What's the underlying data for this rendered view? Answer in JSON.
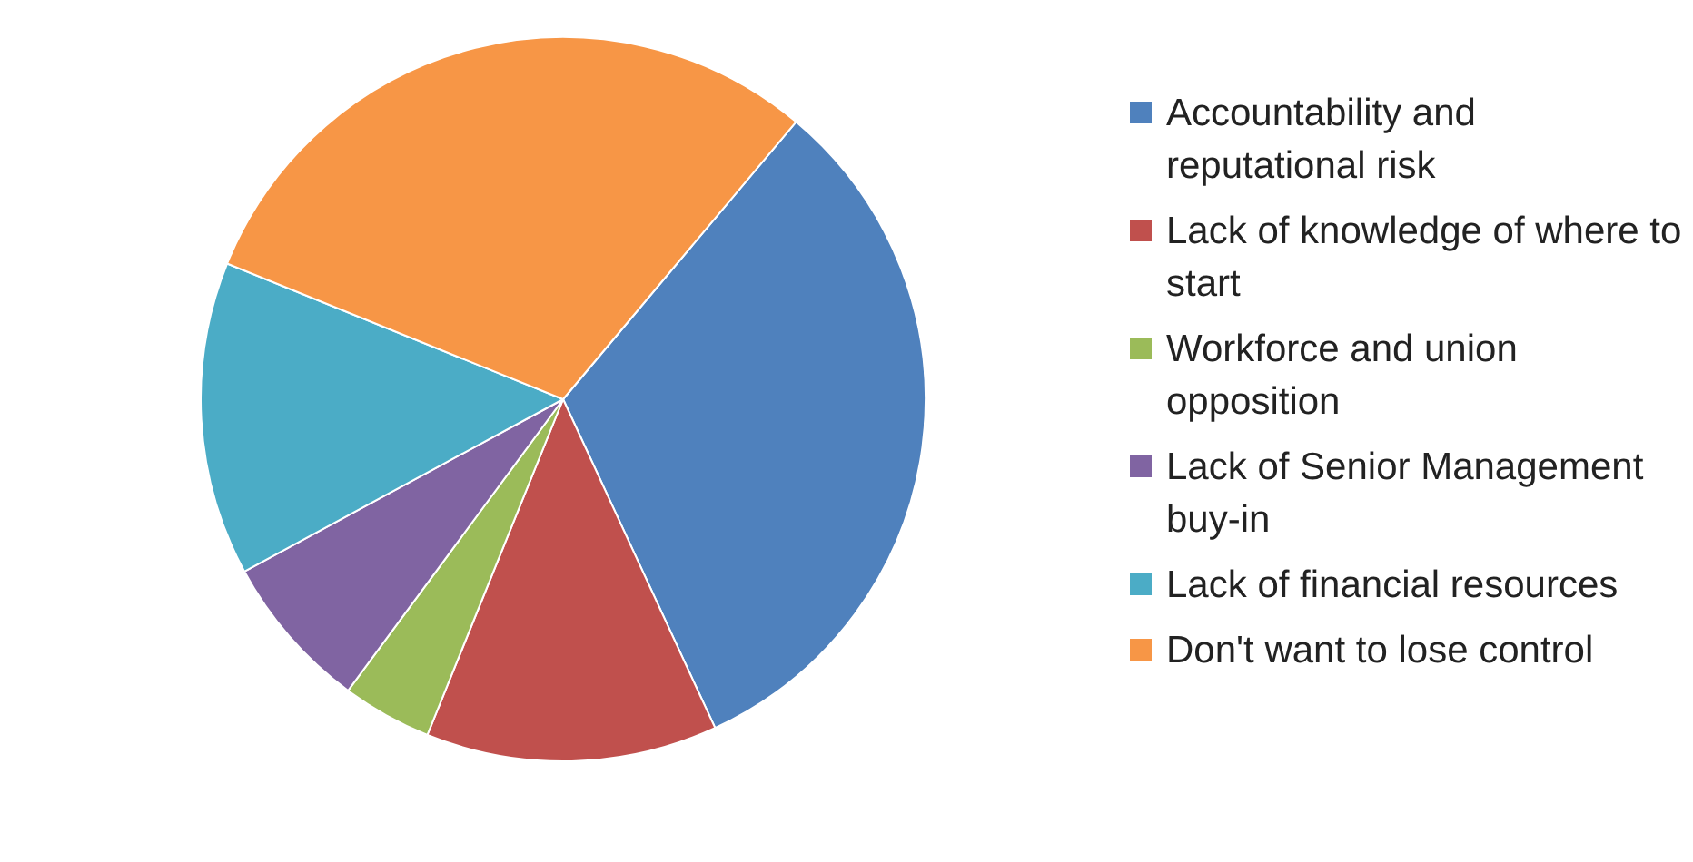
{
  "chart_data": {
    "type": "pie",
    "categories": [
      "Accountability and reputational risk",
      "Lack of knowledge of where to start",
      "Workforce and union opposition",
      "Lack of Senior Management buy-in",
      "Lack of financial resources",
      "Don't want to lose control"
    ],
    "values": [
      32,
      13,
      4,
      7,
      14,
      30
    ],
    "colors": [
      "#4f81bd",
      "#c0504d",
      "#9bbb59",
      "#8064a2",
      "#4bacc6",
      "#f79646"
    ],
    "legend": "right"
  }
}
